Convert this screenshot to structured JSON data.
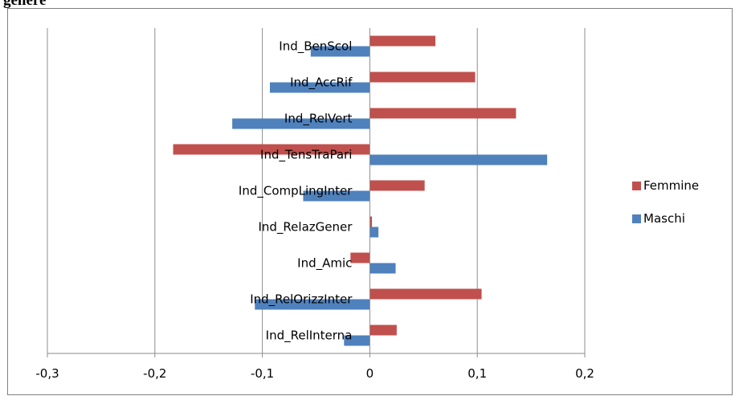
{
  "caption": "genere",
  "chart_data": {
    "type": "bar",
    "orientation": "horizontal",
    "title": "genere",
    "categories": [
      "Ind_BenScol",
      "Ind_AccRif",
      "Ind_RelVert",
      "Ind_TensTraPari",
      "Ind_CompLingInter",
      "Ind_RelazGener",
      "Ind_Amic",
      "Ind_RelOrizzInter",
      "Ind_RelInterna"
    ],
    "series": [
      {
        "name": "Femmine",
        "color": "#c0504d",
        "values": [
          0.061,
          0.098,
          0.136,
          -0.183,
          0.051,
          0.002,
          -0.018,
          0.104,
          0.025
        ]
      },
      {
        "name": "Maschi",
        "color": "#4f81bd",
        "values": [
          -0.055,
          -0.093,
          -0.128,
          0.165,
          -0.062,
          0.008,
          0.024,
          -0.107,
          -0.024
        ]
      }
    ],
    "xlim": [
      -0.3,
      0.2
    ],
    "xticks": [
      -0.3,
      -0.2,
      -0.1,
      0,
      0.1,
      0.2
    ],
    "xtick_labels": [
      "-0,3",
      "-0,2",
      "-0,1",
      "0",
      "0,1",
      "0,2"
    ],
    "grid": "vertical",
    "legend": "right"
  }
}
